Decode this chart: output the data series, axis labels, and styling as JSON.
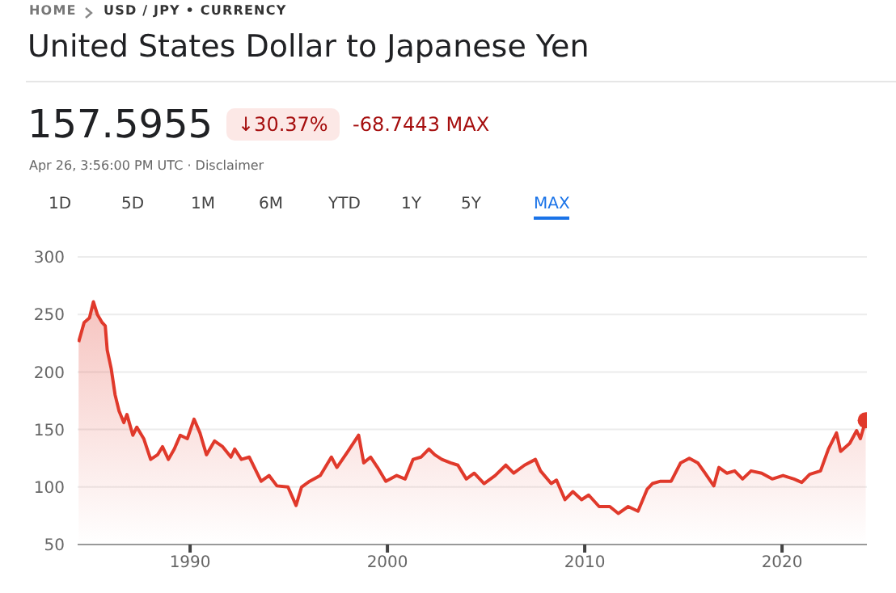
{
  "chart_data": {
    "type": "area",
    "title": "United States Dollar to Japanese Yen",
    "annotations": [
      "HOME",
      "USD / JPY • CURRENCY",
      "157.5955",
      "↓30.37%",
      "-68.7443 MAX",
      "Apr 26, 3:56:00 PM UTC · Disclaimer",
      "1D",
      "5D",
      "1M",
      "6M",
      "YTD",
      "1Y",
      "5Y",
      "MAX"
    ],
    "x": [
      1984.35,
      1984.63,
      1984.9,
      1985.1,
      1985.3,
      1985.54,
      1985.7,
      1985.8,
      1986.0,
      1986.2,
      1986.4,
      1986.64,
      1986.8,
      1987.1,
      1987.3,
      1987.65,
      1988.0,
      1988.35,
      1988.6,
      1988.9,
      1989.2,
      1989.5,
      1989.86,
      1990.2,
      1990.5,
      1990.83,
      1991.24,
      1991.65,
      1992.07,
      1992.26,
      1992.6,
      1993.0,
      1993.6,
      1994.0,
      1994.4,
      1994.96,
      1995.37,
      1995.65,
      1996.06,
      1996.6,
      1997.16,
      1997.44,
      1998.0,
      1998.54,
      1998.8,
      1999.15,
      1999.5,
      1999.92,
      2000.47,
      2000.9,
      2001.3,
      2001.7,
      2002.1,
      2002.4,
      2002.76,
      2003.2,
      2003.57,
      2004.0,
      2004.4,
      2004.9,
      2005.46,
      2006.0,
      2006.4,
      2006.95,
      2007.5,
      2007.76,
      2008.3,
      2008.57,
      2009.0,
      2009.4,
      2009.84,
      2010.2,
      2010.73,
      2011.27,
      2011.7,
      2012.2,
      2012.7,
      2013.16,
      2013.43,
      2013.84,
      2014.38,
      2014.86,
      2015.3,
      2015.73,
      2016.1,
      2016.54,
      2016.8,
      2017.2,
      2017.6,
      2018.0,
      2018.43,
      2018.97,
      2019.5,
      2020.05,
      2020.6,
      2021.0,
      2021.4,
      2021.95,
      2022.35,
      2022.76,
      2022.97,
      2023.43,
      2023.78,
      2023.97,
      2024.24
    ],
    "series": [
      {
        "color": "#e0392b",
        "values": [
          226,
          243,
          247,
          261,
          250,
          243,
          240,
          219,
          203,
          180,
          166,
          156,
          163,
          145,
          152,
          142,
          124,
          128,
          135,
          124,
          133,
          145,
          142,
          159,
          147,
          128,
          140,
          135,
          126,
          133,
          124,
          126,
          105,
          110,
          101,
          100,
          84,
          100,
          105,
          110,
          126,
          117,
          131,
          145,
          121,
          126,
          117,
          105,
          110,
          107,
          124,
          126,
          133,
          128,
          124,
          121,
          119,
          107,
          112,
          103,
          110,
          119,
          112,
          119,
          124,
          114,
          103,
          106,
          89,
          96,
          89,
          93,
          83,
          83,
          77,
          83,
          79,
          98,
          103,
          105,
          105,
          121,
          125,
          121,
          112,
          101,
          117,
          112,
          114,
          107,
          114,
          112,
          107,
          110,
          107,
          104,
          111,
          114,
          133,
          147,
          131,
          138,
          149,
          142,
          158
        ]
      }
    ],
    "xlim": [
      1984.3,
      2024.3
    ],
    "xticks": [
      1990,
      2000,
      2010,
      2020
    ],
    "ylim": [
      50,
      300
    ],
    "yticks": [
      50,
      100,
      150,
      200,
      250,
      300
    ],
    "grid": "y",
    "legend": false,
    "marker": "none",
    "line_style": "solid"
  }
}
